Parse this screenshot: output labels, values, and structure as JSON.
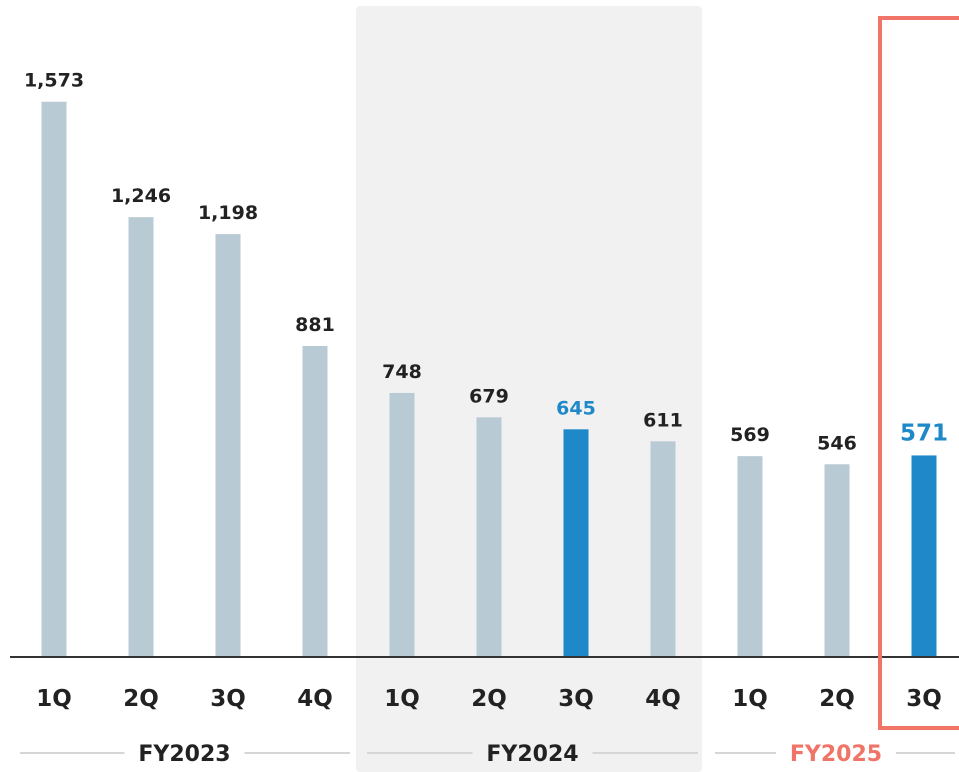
{
  "chart_data": {
    "type": "bar",
    "categories": [
      "1Q",
      "2Q",
      "3Q",
      "4Q",
      "1Q",
      "2Q",
      "3Q",
      "4Q",
      "1Q",
      "2Q",
      "3Q"
    ],
    "groups": [
      {
        "label": "FY2023",
        "quarters": 4
      },
      {
        "label": "FY2024",
        "quarters": 4
      },
      {
        "label": "FY2025",
        "quarters": 3
      }
    ],
    "values": [
      1573,
      1246,
      1198,
      881,
      748,
      679,
      645,
      611,
      569,
      546,
      571
    ],
    "value_labels": [
      "1,573",
      "1,246",
      "1,198",
      "881",
      "748",
      "679",
      "645",
      "611",
      "569",
      "546",
      "571"
    ],
    "highlighted_indices": [
      6,
      10
    ],
    "highlight_group": "FY2024",
    "emphasized_index": 10,
    "ylim": [
      0,
      1650
    ],
    "grid": false,
    "title": "",
    "xlabel": "",
    "ylabel": ""
  },
  "colors": {
    "bar": "#b8cad3",
    "bar_highlight": "#1e88c9",
    "value_text": "#222222",
    "value_highlight_text": "#1e88c9",
    "axis": "#333333",
    "shade": "#f1f1f1",
    "emphasis_box": "#f07468",
    "group_line": "#d6d6d6",
    "current_fy_text": "#f07468"
  }
}
